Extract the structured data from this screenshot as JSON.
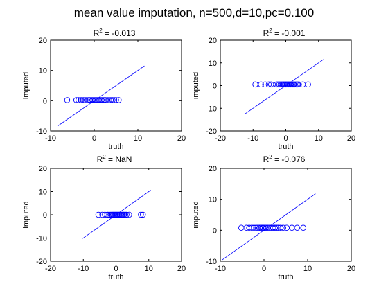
{
  "figure": {
    "title": "mean value imputation, n=500,d=10,pc=0.100",
    "colors": {
      "marker": "#0000ff",
      "line": "#0000ff",
      "axes": "#000000",
      "background": "#ffffff"
    }
  },
  "chart_data": [
    {
      "type": "scatter",
      "title_prefix": "R",
      "title_sup": "2",
      "title_value": " = -0.013",
      "xlabel": "truth",
      "ylabel": "imputed",
      "xlim": [
        -10,
        20
      ],
      "ylim": [
        -10,
        20
      ],
      "xticks": [
        -10,
        0,
        10,
        20
      ],
      "yticks": [
        -10,
        0,
        10,
        20
      ],
      "reference_line": {
        "x": [
          -8.4,
          11.5
        ],
        "y": [
          -8.4,
          11.5
        ]
      },
      "points": {
        "x": [
          -6.2,
          -4.1,
          -3.6,
          -3.0,
          -2.5,
          -2.1,
          -1.7,
          -1.3,
          -1.0,
          -0.7,
          -0.4,
          -0.1,
          0.2,
          0.5,
          0.8,
          1.1,
          1.4,
          1.7,
          2.0,
          2.3,
          2.6,
          3.0,
          3.4,
          3.8,
          4.2,
          4.6,
          5.0,
          5.6
        ],
        "y": [
          0.2,
          0.2,
          0.2,
          0.2,
          0.2,
          0.2,
          0.2,
          0.2,
          0.2,
          0.2,
          0.2,
          0.2,
          0.2,
          0.2,
          0.2,
          0.2,
          0.2,
          0.2,
          0.2,
          0.2,
          0.2,
          0.2,
          0.2,
          0.2,
          0.2,
          0.2,
          0.2,
          0.2
        ]
      }
    },
    {
      "type": "scatter",
      "title_prefix": "R",
      "title_sup": "2",
      "title_value": " = -0.001",
      "xlabel": "truth",
      "ylabel": "imputed",
      "xlim": [
        -20,
        20
      ],
      "ylim": [
        -20,
        20
      ],
      "xticks": [
        -20,
        -10,
        0,
        10,
        20
      ],
      "yticks": [
        -20,
        -10,
        0,
        10,
        20
      ],
      "reference_line": {
        "x": [
          -12.5,
          11.5
        ],
        "y": [
          -12.5,
          11.5
        ]
      },
      "points": {
        "x": [
          -9.3,
          -7.6,
          -6.3,
          -5.2,
          -4.5,
          -2.8,
          -2.4,
          -2.0,
          -1.6,
          -1.2,
          -0.9,
          -0.6,
          -0.3,
          0.0,
          0.3,
          0.6,
          0.9,
          1.2,
          1.5,
          1.8,
          2.1,
          2.4,
          2.8,
          3.2,
          3.6,
          4.0,
          5.2,
          6.8
        ],
        "y": [
          0.5,
          0.5,
          0.5,
          0.5,
          0.5,
          0.5,
          0.5,
          0.5,
          0.5,
          0.5,
          0.5,
          0.5,
          0.5,
          0.5,
          0.5,
          0.5,
          0.5,
          0.5,
          0.5,
          0.5,
          0.5,
          0.5,
          0.5,
          0.5,
          0.5,
          0.5,
          0.5,
          0.5
        ]
      }
    },
    {
      "type": "scatter",
      "title_prefix": "R",
      "title_sup": "2",
      "title_value": " =   NaN",
      "xlabel": "truth",
      "ylabel": "imputed",
      "xlim": [
        -20,
        20
      ],
      "ylim": [
        -20,
        20
      ],
      "xticks": [
        -20,
        -10,
        0,
        10,
        20
      ],
      "yticks": [
        -20,
        -10,
        0,
        10,
        20
      ],
      "reference_line": {
        "x": [
          -10.2,
          10.6
        ],
        "y": [
          -10.2,
          10.6
        ]
      },
      "points": {
        "x": [
          -5.4,
          -4.2,
          -3.4,
          -2.6,
          -2.1,
          -1.6,
          -1.2,
          -0.9,
          -0.6,
          -0.3,
          0.0,
          0.3,
          0.6,
          0.9,
          1.2,
          1.5,
          1.8,
          2.1,
          2.4,
          2.8,
          3.2,
          4.0,
          7.6,
          8.2
        ],
        "y": [
          0.0,
          0.0,
          0.0,
          0.0,
          0.0,
          0.0,
          0.0,
          0.0,
          0.0,
          0.0,
          0.0,
          0.0,
          0.0,
          0.0,
          0.0,
          0.0,
          0.0,
          0.0,
          0.0,
          0.0,
          0.0,
          0.0,
          0.0,
          0.0
        ]
      }
    },
    {
      "type": "scatter",
      "title_prefix": "R",
      "title_sup": "2",
      "title_value": " = -0.076",
      "xlabel": "truth",
      "ylabel": "imputed",
      "xlim": [
        -10,
        20
      ],
      "ylim": [
        -10,
        20
      ],
      "xticks": [
        -10,
        0,
        10,
        20
      ],
      "yticks": [
        -10,
        0,
        10,
        20
      ],
      "reference_line": {
        "x": [
          -9.6,
          11.8
        ],
        "y": [
          -9.6,
          11.8
        ]
      },
      "points": {
        "x": [
          -5.2,
          -4.0,
          -3.4,
          -2.8,
          -2.3,
          -1.8,
          -1.4,
          -1.0,
          -0.7,
          -0.4,
          -0.1,
          0.2,
          0.5,
          0.9,
          1.3,
          1.7,
          2.1,
          2.5,
          2.9,
          3.3,
          3.8,
          4.4,
          5.2,
          6.4,
          7.6,
          9.0
        ],
        "y": [
          0.8,
          0.8,
          0.8,
          0.8,
          0.8,
          0.8,
          0.8,
          0.8,
          0.8,
          0.8,
          0.8,
          0.8,
          0.8,
          0.8,
          0.8,
          0.8,
          0.8,
          0.8,
          0.8,
          0.8,
          0.8,
          0.8,
          0.8,
          0.8,
          0.8,
          0.8
        ]
      }
    }
  ]
}
